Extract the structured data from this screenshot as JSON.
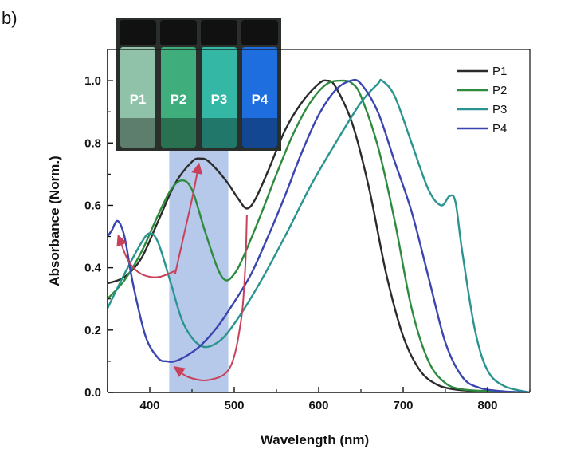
{
  "panel_label": "b)",
  "chart_data": {
    "type": "line",
    "title": "",
    "xlabel": "Wavelength (nm)",
    "ylabel": "Absorbance (Norm.)",
    "xlim": [
      350,
      850
    ],
    "ylim": [
      0,
      1.1
    ],
    "x_ticks": [
      400,
      500,
      600,
      700,
      800
    ],
    "y_ticks": [
      0.0,
      0.2,
      0.4,
      0.6,
      0.8,
      1.0
    ],
    "x_tick_labels": [
      "400",
      "500",
      "600",
      "700",
      "800"
    ],
    "y_tick_labels": [
      "0.0",
      "0.2",
      "0.4",
      "0.6",
      "0.8",
      "1.0"
    ],
    "grid": false,
    "legend": "top-right",
    "shaded_band": {
      "x_range": [
        423,
        493
      ],
      "color": "#a9bfe6"
    },
    "series": [
      {
        "name": "P1",
        "color": "#2b2b2b",
        "x": [
          350,
          370,
          390,
          410,
          430,
          450,
          460,
          470,
          490,
          505,
          515,
          525,
          540,
          560,
          580,
          600,
          610,
          620,
          640,
          660,
          680,
          700,
          720,
          740,
          760,
          780,
          800,
          830,
          850
        ],
        "y": [
          0.35,
          0.37,
          0.43,
          0.55,
          0.67,
          0.74,
          0.75,
          0.74,
          0.68,
          0.62,
          0.59,
          0.62,
          0.71,
          0.84,
          0.93,
          0.99,
          1.0,
          0.98,
          0.86,
          0.65,
          0.38,
          0.18,
          0.07,
          0.025,
          0.01,
          0.005,
          0.003,
          0.001,
          0.0
        ]
      },
      {
        "name": "P2",
        "color": "#2e8b3e",
        "x": [
          350,
          370,
          390,
          410,
          425,
          438,
          450,
          465,
          480,
          490,
          500,
          510,
          530,
          550,
          570,
          590,
          610,
          630,
          640,
          650,
          670,
          690,
          710,
          730,
          750,
          770,
          800,
          830,
          850
        ],
        "y": [
          0.3,
          0.36,
          0.45,
          0.57,
          0.65,
          0.68,
          0.65,
          0.52,
          0.4,
          0.36,
          0.38,
          0.43,
          0.56,
          0.7,
          0.83,
          0.93,
          0.99,
          1.0,
          0.99,
          0.95,
          0.79,
          0.55,
          0.27,
          0.1,
          0.03,
          0.01,
          0.004,
          0.001,
          0.0
        ]
      },
      {
        "name": "P3",
        "color": "#2a9590",
        "x": [
          350,
          370,
          390,
          400,
          410,
          425,
          440,
          460,
          480,
          500,
          530,
          560,
          590,
          620,
          650,
          670,
          675,
          690,
          710,
          730,
          745,
          755,
          762,
          770,
          785,
          800,
          820,
          850
        ],
        "y": [
          0.27,
          0.38,
          0.48,
          0.51,
          0.48,
          0.35,
          0.22,
          0.15,
          0.16,
          0.22,
          0.35,
          0.5,
          0.66,
          0.8,
          0.93,
          0.99,
          1.0,
          0.95,
          0.8,
          0.65,
          0.6,
          0.63,
          0.61,
          0.45,
          0.2,
          0.07,
          0.02,
          0.0
        ]
      },
      {
        "name": "P4",
        "color": "#3b45b0",
        "x": [
          350,
          355,
          362,
          370,
          380,
          395,
          410,
          420,
          430,
          445,
          460,
          480,
          500,
          520,
          540,
          560,
          580,
          600,
          620,
          638,
          650,
          670,
          690,
          710,
          730,
          750,
          770,
          790,
          820,
          850
        ],
        "y": [
          0.5,
          0.52,
          0.55,
          0.5,
          0.35,
          0.18,
          0.11,
          0.1,
          0.1,
          0.12,
          0.15,
          0.21,
          0.29,
          0.38,
          0.5,
          0.63,
          0.77,
          0.89,
          0.97,
          1.0,
          0.99,
          0.9,
          0.74,
          0.58,
          0.37,
          0.16,
          0.05,
          0.015,
          0.003,
          0.0
        ]
      }
    ],
    "annotations": [
      {
        "type": "arrow",
        "color": "#c8405a",
        "x": [
          430,
          440,
          450,
          458
        ],
        "y": [
          0.38,
          0.5,
          0.62,
          0.73
        ]
      },
      {
        "type": "arrow",
        "color": "#c8405a",
        "x": [
          430,
          410,
          390,
          375,
          363
        ],
        "y": [
          0.39,
          0.37,
          0.38,
          0.42,
          0.5
        ]
      },
      {
        "type": "arrow",
        "color": "#c8405a",
        "x": [
          515,
          513,
          508,
          495,
          470,
          445,
          430
        ],
        "y": [
          0.57,
          0.4,
          0.23,
          0.08,
          0.04,
          0.05,
          0.08
        ]
      }
    ]
  },
  "inset": {
    "vials": [
      {
        "label": "P1",
        "color": "#8fc2a8"
      },
      {
        "label": "P2",
        "color": "#3fae7c"
      },
      {
        "label": "P3",
        "color": "#34b7a4"
      },
      {
        "label": "P4",
        "color": "#1e6ee0"
      }
    ]
  }
}
